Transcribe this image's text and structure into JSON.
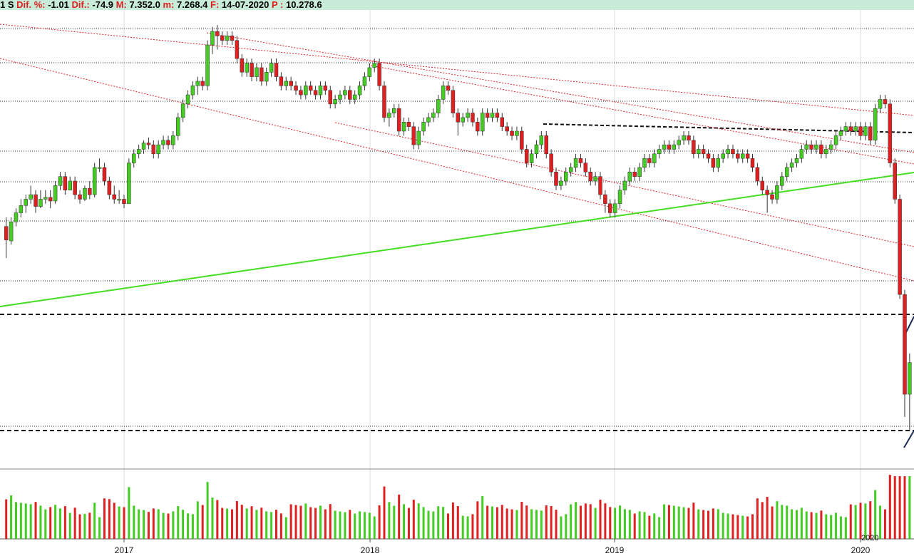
{
  "header": {
    "prefix": "1 S",
    "dif_pct_label": "Dif. %:",
    "dif_pct_value": "-1.01",
    "dif_label": "Dif.:",
    "dif_value": "-74.9",
    "max_label": "M:",
    "max_value": "7.352.0",
    "min_label": "m:",
    "min_value": "7.268.4",
    "date_label": "F:",
    "date_value": "14-07-2020",
    "p_label": "P :",
    "p_value": "10.278.6"
  },
  "colors": {
    "up": "#44cc22",
    "down": "#e02020",
    "trend_red": "#e02020",
    "trend_green": "#44dd22",
    "grid": "#dddddd",
    "header_bg": "#c8ecd8"
  },
  "chart_data": {
    "type": "candlestick",
    "frequency": "weekly",
    "x_tick_labels": [
      "2017",
      "2018",
      "2019",
      "2020"
    ],
    "volume_inset_label": "2020",
    "price_axis_labels": [],
    "price_range": [
      6000,
      11200
    ],
    "candles": [
      [
        2016.52,
        8400,
        8250,
        8500,
        8050
      ],
      [
        2016.54,
        8240,
        8450,
        8500,
        8200
      ],
      [
        2016.56,
        8450,
        8550,
        8600,
        8400
      ],
      [
        2016.58,
        8550,
        8630,
        8700,
        8500
      ],
      [
        2016.6,
        8630,
        8700,
        8750,
        8550
      ],
      [
        2016.62,
        8700,
        8750,
        8850,
        8650
      ],
      [
        2016.64,
        8750,
        8620,
        8800,
        8550
      ],
      [
        2016.66,
        8620,
        8700,
        8800,
        8600
      ],
      [
        2016.68,
        8700,
        8720,
        8800,
        8650
      ],
      [
        2016.7,
        8720,
        8680,
        8800,
        8600
      ],
      [
        2016.72,
        8680,
        8850,
        8900,
        8650
      ],
      [
        2016.74,
        8850,
        8950,
        9000,
        8800
      ],
      [
        2016.76,
        8950,
        8800,
        9000,
        8750
      ],
      [
        2016.78,
        8800,
        8900,
        8950,
        8800
      ],
      [
        2016.8,
        8900,
        8750,
        8950,
        8700
      ],
      [
        2016.82,
        8750,
        8700,
        8800,
        8650
      ],
      [
        2016.84,
        8700,
        8820,
        8850,
        8680
      ],
      [
        2016.86,
        8820,
        8750,
        8900,
        8700
      ],
      [
        2016.88,
        8750,
        9050,
        9100,
        8720
      ],
      [
        2016.9,
        9050,
        9050,
        9150,
        9000
      ],
      [
        2016.92,
        9050,
        8900,
        9100,
        8850
      ],
      [
        2016.94,
        8900,
        8750,
        8950,
        8700
      ],
      [
        2016.96,
        8750,
        8700,
        8850,
        8650
      ],
      [
        2016.98,
        8700,
        8700,
        8800,
        8650
      ],
      [
        2017,
        8700,
        8650,
        8750,
        8600
      ],
      [
        2017.02,
        8650,
        9100,
        9150,
        8650
      ],
      [
        2017.04,
        9100,
        9200,
        9250,
        9050
      ],
      [
        2017.06,
        9200,
        9250,
        9300,
        9150
      ],
      [
        2017.08,
        9250,
        9320,
        9350,
        9200
      ],
      [
        2017.1,
        9320,
        9300,
        9380,
        9250
      ],
      [
        2017.12,
        9300,
        9200,
        9350,
        9150
      ],
      [
        2017.14,
        9200,
        9300,
        9350,
        9150
      ],
      [
        2017.16,
        9300,
        9350,
        9400,
        9250
      ],
      [
        2017.18,
        9350,
        9300,
        9400,
        9250
      ],
      [
        2017.2,
        9300,
        9400,
        9450,
        9250
      ],
      [
        2017.22,
        9400,
        9600,
        9650,
        9350
      ],
      [
        2017.24,
        9600,
        9750,
        9800,
        9550
      ],
      [
        2017.26,
        9750,
        9850,
        9900,
        9700
      ],
      [
        2017.28,
        9850,
        9950,
        10000,
        9800
      ],
      [
        2017.3,
        9950,
        10000,
        10050,
        9850
      ],
      [
        2017.32,
        10000,
        9950,
        10050,
        9900
      ],
      [
        2017.34,
        9950,
        10400,
        10450,
        9900
      ],
      [
        2017.36,
        10400,
        10550,
        10600,
        10300
      ],
      [
        2017.38,
        10550,
        10500,
        10620,
        10350
      ],
      [
        2017.4,
        10500,
        10450,
        10550,
        10400
      ],
      [
        2017.42,
        10450,
        10500,
        10550,
        10400
      ],
      [
        2017.44,
        10500,
        10450,
        10550,
        10400
      ],
      [
        2017.46,
        10450,
        10250,
        10500,
        10200
      ],
      [
        2017.48,
        10250,
        10100,
        10300,
        10050
      ],
      [
        2017.5,
        10100,
        10200,
        10250,
        10050
      ],
      [
        2017.52,
        10200,
        10050,
        10250,
        10000
      ],
      [
        2017.54,
        10050,
        10150,
        10200,
        10000
      ],
      [
        2017.56,
        10150,
        10000,
        10200,
        9950
      ],
      [
        2017.58,
        10000,
        10100,
        10150,
        9950
      ],
      [
        2017.6,
        10100,
        10200,
        10250,
        10050
      ],
      [
        2017.62,
        10200,
        10050,
        10250,
        10000
      ],
      [
        2017.64,
        10050,
        9950,
        10100,
        9900
      ],
      [
        2017.66,
        9950,
        10000,
        10050,
        9900
      ],
      [
        2017.68,
        10000,
        9950,
        10050,
        9900
      ],
      [
        2017.7,
        9950,
        9900,
        10000,
        9850
      ],
      [
        2017.72,
        9900,
        9850,
        9950,
        9800
      ],
      [
        2017.74,
        9850,
        9950,
        10000,
        9800
      ],
      [
        2017.76,
        9950,
        9900,
        10000,
        9850
      ],
      [
        2017.78,
        9900,
        9850,
        9950,
        9800
      ],
      [
        2017.8,
        9850,
        9950,
        10000,
        9800
      ],
      [
        2017.82,
        9950,
        9900,
        10000,
        9850
      ],
      [
        2017.84,
        9900,
        9750,
        9950,
        9700
      ],
      [
        2017.86,
        9750,
        9800,
        9850,
        9700
      ],
      [
        2017.88,
        9800,
        9850,
        9900,
        9750
      ],
      [
        2017.9,
        9850,
        9900,
        9950,
        9800
      ],
      [
        2017.92,
        9900,
        9800,
        9950,
        9750
      ],
      [
        2017.94,
        9800,
        9850,
        9900,
        9750
      ],
      [
        2017.96,
        9850,
        9950,
        10000,
        9800
      ],
      [
        2017.98,
        9950,
        10050,
        10100,
        9900
      ],
      [
        2018,
        10050,
        10150,
        10200,
        10000
      ],
      [
        2018.02,
        10150,
        10200,
        10250,
        10100
      ],
      [
        2018.04,
        10200,
        9950,
        10250,
        9900
      ],
      [
        2018.06,
        9950,
        9600,
        10000,
        9550
      ],
      [
        2018.08,
        9600,
        9650,
        9700,
        9500
      ],
      [
        2018.1,
        9650,
        9700,
        9750,
        9600
      ],
      [
        2018.12,
        9700,
        9450,
        9750,
        9400
      ],
      [
        2018.14,
        9450,
        9550,
        9600,
        9400
      ],
      [
        2018.16,
        9550,
        9500,
        9600,
        9450
      ],
      [
        2018.18,
        9500,
        9300,
        9550,
        9250
      ],
      [
        2018.2,
        9300,
        9450,
        9500,
        9250
      ],
      [
        2018.22,
        9450,
        9550,
        9600,
        9400
      ],
      [
        2018.24,
        9550,
        9600,
        9650,
        9500
      ],
      [
        2018.26,
        9600,
        9650,
        9700,
        9550
      ],
      [
        2018.28,
        9650,
        9800,
        9850,
        9600
      ],
      [
        2018.3,
        9800,
        9950,
        10000,
        9750
      ],
      [
        2018.32,
        9950,
        9900,
        10000,
        9850
      ],
      [
        2018.34,
        9900,
        9650,
        9950,
        9600
      ],
      [
        2018.36,
        9650,
        9550,
        9700,
        9400
      ],
      [
        2018.38,
        9550,
        9600,
        9650,
        9500
      ],
      [
        2018.4,
        9600,
        9650,
        9700,
        9550
      ],
      [
        2018.42,
        9650,
        9550,
        9700,
        9500
      ],
      [
        2018.44,
        9550,
        9450,
        9600,
        9400
      ],
      [
        2018.46,
        9450,
        9650,
        9700,
        9400
      ],
      [
        2018.48,
        9650,
        9600,
        9700,
        9550
      ],
      [
        2018.5,
        9600,
        9650,
        9700,
        9550
      ],
      [
        2018.52,
        9650,
        9600,
        9700,
        9550
      ],
      [
        2018.54,
        9600,
        9500,
        9650,
        9450
      ],
      [
        2018.56,
        9500,
        9450,
        9550,
        9400
      ],
      [
        2018.58,
        9450,
        9400,
        9500,
        9350
      ],
      [
        2018.6,
        9400,
        9450,
        9500,
        9350
      ],
      [
        2018.62,
        9450,
        9250,
        9500,
        9200
      ],
      [
        2018.64,
        9250,
        9100,
        9300,
        9050
      ],
      [
        2018.66,
        9100,
        9200,
        9250,
        9050
      ],
      [
        2018.68,
        9200,
        9300,
        9350,
        9150
      ],
      [
        2018.7,
        9300,
        9400,
        9450,
        9250
      ],
      [
        2018.72,
        9400,
        9200,
        9450,
        9150
      ],
      [
        2018.74,
        9200,
        9000,
        9250,
        8950
      ],
      [
        2018.76,
        9000,
        8850,
        9050,
        8800
      ],
      [
        2018.78,
        8850,
        8900,
        8950,
        8800
      ],
      [
        2018.8,
        8900,
        9000,
        9050,
        8850
      ],
      [
        2018.82,
        9000,
        9050,
        9100,
        8950
      ],
      [
        2018.84,
        9050,
        9150,
        9200,
        9000
      ],
      [
        2018.86,
        9150,
        9100,
        9200,
        9050
      ],
      [
        2018.88,
        9100,
        9000,
        9150,
        8950
      ],
      [
        2018.9,
        9000,
        8900,
        9050,
        8850
      ],
      [
        2018.92,
        8900,
        8950,
        9000,
        8850
      ],
      [
        2018.94,
        8950,
        8750,
        9000,
        8700
      ],
      [
        2018.96,
        8750,
        8650,
        8800,
        8550
      ],
      [
        2018.98,
        8650,
        8550,
        8700,
        8500
      ],
      [
        2019,
        8550,
        8650,
        8700,
        8500
      ],
      [
        2019.02,
        8650,
        8800,
        8850,
        8600
      ],
      [
        2019.04,
        8800,
        8900,
        8950,
        8750
      ],
      [
        2019.06,
        8900,
        9000,
        9050,
        8850
      ],
      [
        2019.08,
        9000,
        8950,
        9050,
        8900
      ],
      [
        2019.1,
        8950,
        9050,
        9100,
        8900
      ],
      [
        2019.12,
        9050,
        9150,
        9200,
        9000
      ],
      [
        2019.14,
        9150,
        9100,
        9200,
        9050
      ],
      [
        2019.16,
        9100,
        9200,
        9250,
        9050
      ],
      [
        2019.18,
        9200,
        9250,
        9300,
        9150
      ],
      [
        2019.2,
        9250,
        9300,
        9350,
        9200
      ],
      [
        2019.22,
        9300,
        9250,
        9350,
        9200
      ],
      [
        2019.24,
        9250,
        9300,
        9350,
        9200
      ],
      [
        2019.26,
        9300,
        9350,
        9400,
        9250
      ],
      [
        2019.28,
        9350,
        9400,
        9450,
        9300
      ],
      [
        2019.3,
        9400,
        9350,
        9450,
        9300
      ],
      [
        2019.32,
        9350,
        9200,
        9400,
        9150
      ],
      [
        2019.34,
        9200,
        9250,
        9300,
        9150
      ],
      [
        2019.36,
        9250,
        9200,
        9300,
        9150
      ],
      [
        2019.38,
        9200,
        9150,
        9250,
        9100
      ],
      [
        2019.4,
        9150,
        9050,
        9200,
        9000
      ],
      [
        2019.42,
        9050,
        9150,
        9200,
        9000
      ],
      [
        2019.44,
        9150,
        9200,
        9250,
        9100
      ],
      [
        2019.46,
        9200,
        9250,
        9300,
        9150
      ],
      [
        2019.48,
        9250,
        9200,
        9300,
        9150
      ],
      [
        2019.5,
        9200,
        9150,
        9250,
        9100
      ],
      [
        2019.52,
        9150,
        9200,
        9250,
        9100
      ],
      [
        2019.54,
        9200,
        9150,
        9250,
        9100
      ],
      [
        2019.56,
        9150,
        9050,
        9200,
        9000
      ],
      [
        2019.58,
        9050,
        8900,
        9100,
        8850
      ],
      [
        2019.6,
        8900,
        8800,
        8950,
        8750
      ],
      [
        2019.62,
        8800,
        8750,
        8850,
        8550
      ],
      [
        2019.64,
        8750,
        8700,
        8800,
        8650
      ],
      [
        2019.66,
        8700,
        8850,
        8900,
        8650
      ],
      [
        2019.68,
        8850,
        8950,
        9000,
        8800
      ],
      [
        2019.7,
        8950,
        9050,
        9100,
        8900
      ],
      [
        2019.72,
        9050,
        9100,
        9150,
        9000
      ],
      [
        2019.74,
        9100,
        9150,
        9200,
        9050
      ],
      [
        2019.76,
        9150,
        9250,
        9300,
        9100
      ],
      [
        2019.78,
        9250,
        9300,
        9350,
        9200
      ],
      [
        2019.8,
        9300,
        9250,
        9350,
        9200
      ],
      [
        2019.82,
        9250,
        9300,
        9350,
        9200
      ],
      [
        2019.84,
        9300,
        9200,
        9350,
        9150
      ],
      [
        2019.86,
        9200,
        9250,
        9300,
        9150
      ],
      [
        2019.88,
        9250,
        9300,
        9350,
        9200
      ],
      [
        2019.9,
        9300,
        9400,
        9450,
        9250
      ],
      [
        2019.92,
        9400,
        9450,
        9500,
        9350
      ],
      [
        2019.94,
        9450,
        9500,
        9550,
        9400
      ],
      [
        2019.96,
        9500,
        9450,
        9550,
        9400
      ],
      [
        2019.98,
        9450,
        9500,
        9550,
        9400
      ],
      [
        2020,
        9500,
        9400,
        9550,
        9350
      ],
      [
        2020.02,
        9400,
        9500,
        9550,
        9350
      ],
      [
        2020.04,
        9500,
        9350,
        9550,
        9300
      ],
      [
        2020.06,
        9350,
        9700,
        9750,
        9300
      ],
      [
        2020.08,
        9700,
        9800,
        9850,
        9650
      ],
      [
        2020.1,
        9800,
        9750,
        9850,
        9700
      ],
      [
        2020.12,
        9750,
        9100,
        9800,
        9050
      ],
      [
        2020.14,
        9100,
        8700,
        9150,
        8650
      ],
      [
        2020.16,
        8700,
        7650,
        8750,
        7600
      ],
      [
        2020.18,
        7650,
        6550,
        7700,
        6300
      ],
      [
        2020.2,
        6550,
        6900,
        7000,
        6150
      ]
    ],
    "volumes": []
  }
}
